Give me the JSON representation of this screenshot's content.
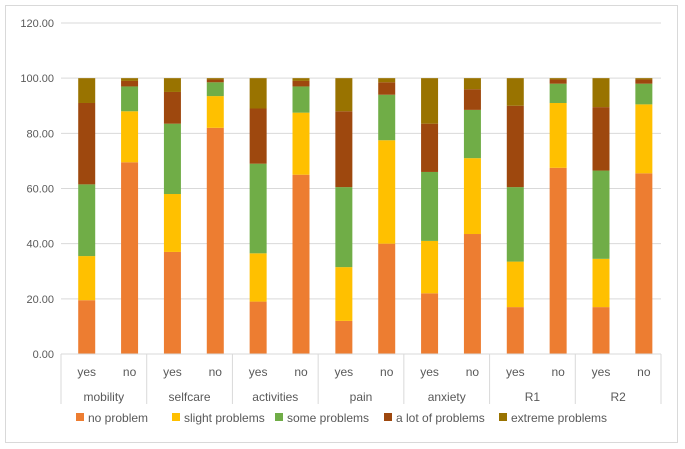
{
  "chart_data": {
    "type": "bar",
    "stacked": true,
    "ylim": [
      0,
      120
    ],
    "yticks": [
      "0.00",
      "20.00",
      "40.00",
      "60.00",
      "80.00",
      "100.00",
      "120.00"
    ],
    "grid": true,
    "legend_position": "bottom",
    "groups": [
      "mobility",
      "selfcare",
      "activities",
      "pain",
      "anxiety",
      "R1",
      "R2"
    ],
    "subcategories": [
      "yes",
      "no"
    ],
    "series": [
      {
        "name": "no problem",
        "color": "#ed7d31",
        "values": [
          19.5,
          69.5,
          37.0,
          82.0,
          19.0,
          65.0,
          12.0,
          40.0,
          22.0,
          43.5,
          17.0,
          67.5,
          17.0,
          65.5
        ]
      },
      {
        "name": "slight problems",
        "color": "#ffc000",
        "values": [
          16.0,
          18.5,
          21.0,
          11.5,
          17.5,
          22.5,
          19.5,
          37.5,
          19.0,
          27.5,
          16.5,
          23.5,
          17.5,
          25.0
        ]
      },
      {
        "name": "some problems",
        "color": "#70ad47",
        "values": [
          26.0,
          9.0,
          25.5,
          5.0,
          32.5,
          9.5,
          29.0,
          16.5,
          25.0,
          17.5,
          27.0,
          7.0,
          32.0,
          7.5
        ]
      },
      {
        "name": "a lot of problems",
        "color": "#9e480e",
        "values": [
          29.5,
          2.0,
          11.5,
          1.0,
          20.0,
          2.0,
          27.5,
          4.5,
          17.5,
          7.5,
          29.5,
          1.5,
          23.0,
          1.5
        ]
      },
      {
        "name": "extreme problems",
        "color": "#997300",
        "values": [
          9.0,
          1.0,
          5.0,
          0.5,
          11.0,
          1.0,
          12.0,
          1.5,
          16.5,
          4.0,
          10.0,
          0.5,
          10.5,
          0.5
        ]
      }
    ]
  }
}
